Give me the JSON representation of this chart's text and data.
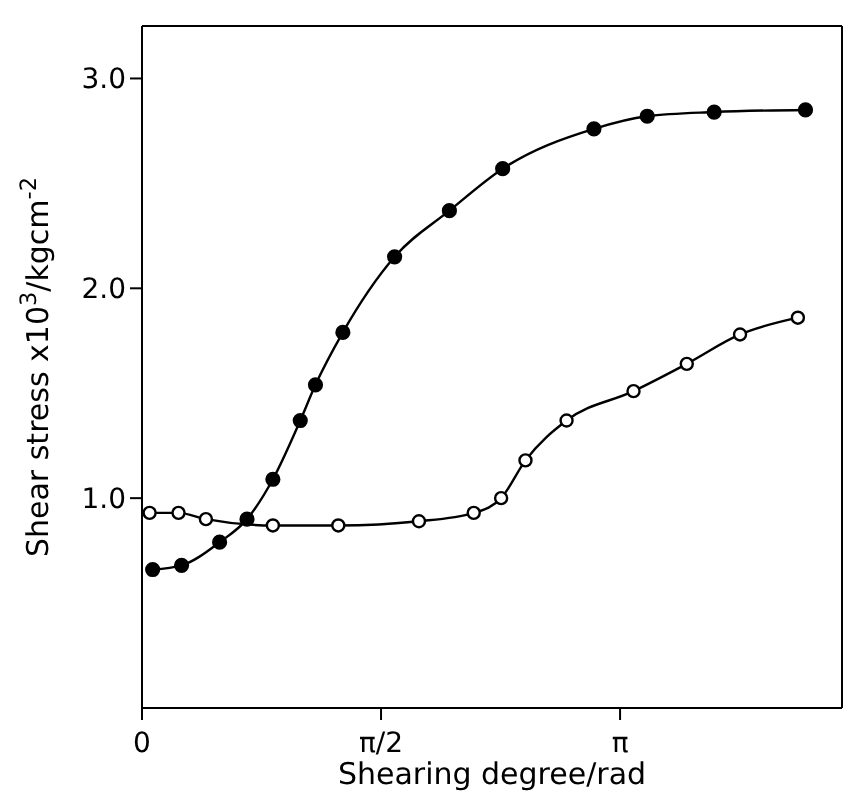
{
  "chart_data": {
    "type": "line",
    "xlabel": "Shearing degree/rad",
    "ylabel": "Shear stress x10$^{3}$/kgcm$^{-2}$",
    "xlim": [
      0,
      4.6
    ],
    "ylim": [
      0,
      3.25
    ],
    "xticks": [
      {
        "value": 0,
        "label": "0"
      },
      {
        "value": 1.5708,
        "label": "π/2"
      },
      {
        "value": 3.1416,
        "label": "π"
      }
    ],
    "yticks": [
      {
        "value": 1,
        "label": "1.0"
      },
      {
        "value": 2,
        "label": "2.0"
      },
      {
        "value": 3,
        "label": "3.0"
      }
    ],
    "line_style": "solid",
    "series": [
      {
        "color": "#000000",
        "marker": "circle",
        "x": [
          0.07,
          0.26,
          0.51,
          0.69,
          0.86,
          1.04,
          1.14,
          1.32,
          1.66,
          2.02,
          2.37,
          2.97,
          3.32,
          3.76,
          4.36
        ],
        "values": [
          0.66,
          0.68,
          0.79,
          0.9,
          1.09,
          1.37,
          1.54,
          1.79,
          2.15,
          2.37,
          2.57,
          2.76,
          2.82,
          2.84,
          2.85
        ]
      },
      {
        "color": "#000000",
        "marker": "circle-open",
        "x": [
          0.05,
          0.24,
          0.42,
          0.86,
          1.29,
          1.82,
          2.18,
          2.36,
          2.52,
          2.79,
          3.23,
          3.58,
          3.93,
          4.31
        ],
        "values": [
          0.93,
          0.93,
          0.9,
          0.87,
          0.87,
          0.89,
          0.93,
          1.0,
          1.18,
          1.37,
          1.51,
          1.64,
          1.78,
          1.86
        ]
      }
    ]
  }
}
